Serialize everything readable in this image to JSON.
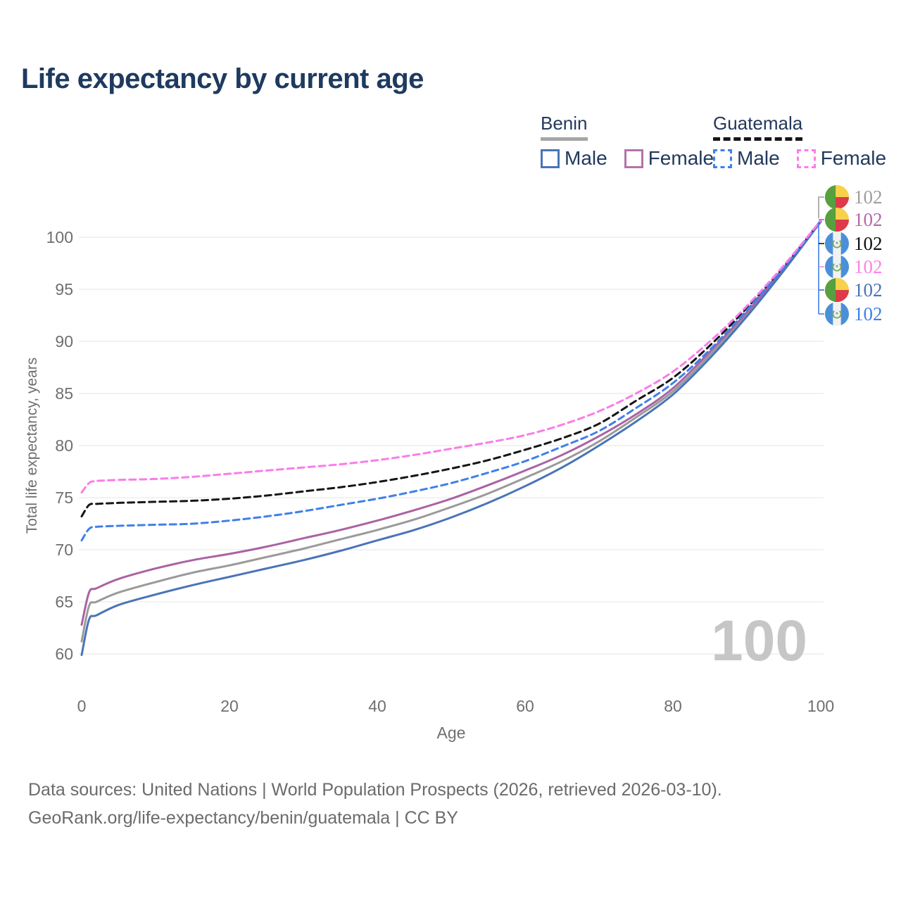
{
  "title": "Life expectancy by current age",
  "legend": {
    "groups": [
      {
        "name": "Benin",
        "line_style": "solid",
        "underline_color": "#a6a6a6",
        "items": [
          {
            "label": "Male",
            "color": "#4a74b8"
          },
          {
            "label": "Female",
            "color": "#b472aa"
          }
        ]
      },
      {
        "name": "Guatemala",
        "line_style": "dashed",
        "underline_color": "#161616",
        "items": [
          {
            "label": "Male",
            "color": "#3f80ea"
          },
          {
            "label": "Female",
            "color": "#fb7ce8"
          }
        ]
      }
    ]
  },
  "watermark": "100",
  "chart_data": {
    "type": "line",
    "title": "Life expectancy by current age",
    "xlabel": "Age",
    "ylabel": "Total life expectancy, years",
    "x_ticks": [
      0,
      20,
      40,
      60,
      80,
      100
    ],
    "y_ticks": [
      60,
      65,
      70,
      75,
      80,
      85,
      90,
      95,
      100
    ],
    "xlim": [
      0,
      100
    ],
    "ylim": [
      58.5,
      103
    ],
    "grid": "horizontal-only",
    "gridline_color": "#e9e9e9",
    "axis_text_color": "#6f6f6f",
    "x": [
      0,
      1,
      2,
      5,
      10,
      15,
      20,
      25,
      30,
      35,
      40,
      45,
      50,
      55,
      60,
      65,
      70,
      75,
      80,
      85,
      90,
      95,
      100
    ],
    "series": [
      {
        "name": "Benin Both sexes",
        "country": "Benin",
        "sex": "Both",
        "color": "#9a9a9a",
        "dash": "solid",
        "values": [
          61.2,
          64.6,
          65.0,
          65.9,
          66.9,
          67.8,
          68.5,
          69.3,
          70.1,
          71.0,
          71.9,
          72.9,
          74.1,
          75.4,
          76.9,
          78.5,
          80.4,
          82.7,
          85.2,
          88.7,
          92.6,
          96.9,
          101.5
        ],
        "end_label": "102"
      },
      {
        "name": "Benin Female",
        "country": "Benin",
        "sex": "Female",
        "color": "#ab62a4",
        "dash": "solid",
        "values": [
          62.8,
          65.9,
          66.3,
          67.2,
          68.2,
          69.0,
          69.6,
          70.3,
          71.1,
          71.9,
          72.8,
          73.8,
          74.9,
          76.2,
          77.6,
          79.1,
          80.9,
          83.0,
          85.5,
          89.0,
          92.8,
          97.0,
          101.5
        ],
        "end_label": "102"
      },
      {
        "name": "Benin Male",
        "country": "Benin",
        "sex": "Male",
        "color": "#4a74b8",
        "dash": "solid",
        "values": [
          59.9,
          63.3,
          63.7,
          64.7,
          65.7,
          66.6,
          67.4,
          68.2,
          69.0,
          69.9,
          70.9,
          71.9,
          73.1,
          74.5,
          76.1,
          77.9,
          80.0,
          82.3,
          84.9,
          88.4,
          92.4,
          96.8,
          101.5
        ],
        "end_label": "102"
      },
      {
        "name": "Guatemala Both sexes",
        "country": "Guatemala",
        "sex": "Both",
        "color": "#161616",
        "dash": "dashed",
        "values": [
          73.2,
          74.3,
          74.4,
          74.5,
          74.6,
          74.7,
          74.9,
          75.2,
          75.6,
          76.0,
          76.5,
          77.1,
          77.8,
          78.6,
          79.6,
          80.7,
          82.1,
          84.3,
          86.5,
          89.6,
          93.2,
          97.2,
          101.6
        ],
        "end_label": "102"
      },
      {
        "name": "Guatemala Male",
        "country": "Guatemala",
        "sex": "Male",
        "color": "#3f80ea",
        "dash": "dashed",
        "values": [
          70.9,
          72.0,
          72.2,
          72.3,
          72.4,
          72.5,
          72.8,
          73.2,
          73.7,
          74.3,
          74.9,
          75.6,
          76.4,
          77.4,
          78.5,
          79.9,
          81.4,
          83.6,
          86.0,
          89.2,
          93.0,
          97.1,
          101.6
        ],
        "end_label": "102"
      },
      {
        "name": "Guatemala Female",
        "country": "Guatemala",
        "sex": "Female",
        "color": "#fb7ce8",
        "dash": "dashed",
        "values": [
          75.5,
          76.4,
          76.6,
          76.7,
          76.8,
          77.0,
          77.3,
          77.6,
          77.9,
          78.2,
          78.6,
          79.1,
          79.7,
          80.3,
          81.0,
          82.0,
          83.3,
          85.0,
          87.1,
          90.0,
          93.4,
          97.3,
          101.6
        ],
        "end_label": "102"
      }
    ]
  },
  "end_labels": [
    {
      "value": "102",
      "flag": "benin",
      "color": "#9e9e9e"
    },
    {
      "value": "102",
      "flag": "benin",
      "color": "#b468ae"
    },
    {
      "value": "102",
      "flag": "guatemala",
      "color": "#111111"
    },
    {
      "value": "102",
      "flag": "guatemala",
      "color": "#fc84e8"
    },
    {
      "value": "102",
      "flag": "benin",
      "color": "#4a74b8"
    },
    {
      "value": "102",
      "flag": "guatemala",
      "color": "#3f80ea"
    }
  ],
  "footer": {
    "line1": "Data sources: United Nations | World Population Prospects (2026, retrieved 2026-03-10).",
    "line2": "GeoRank.org/life-expectancy/benin/guatemala | CC BY"
  }
}
